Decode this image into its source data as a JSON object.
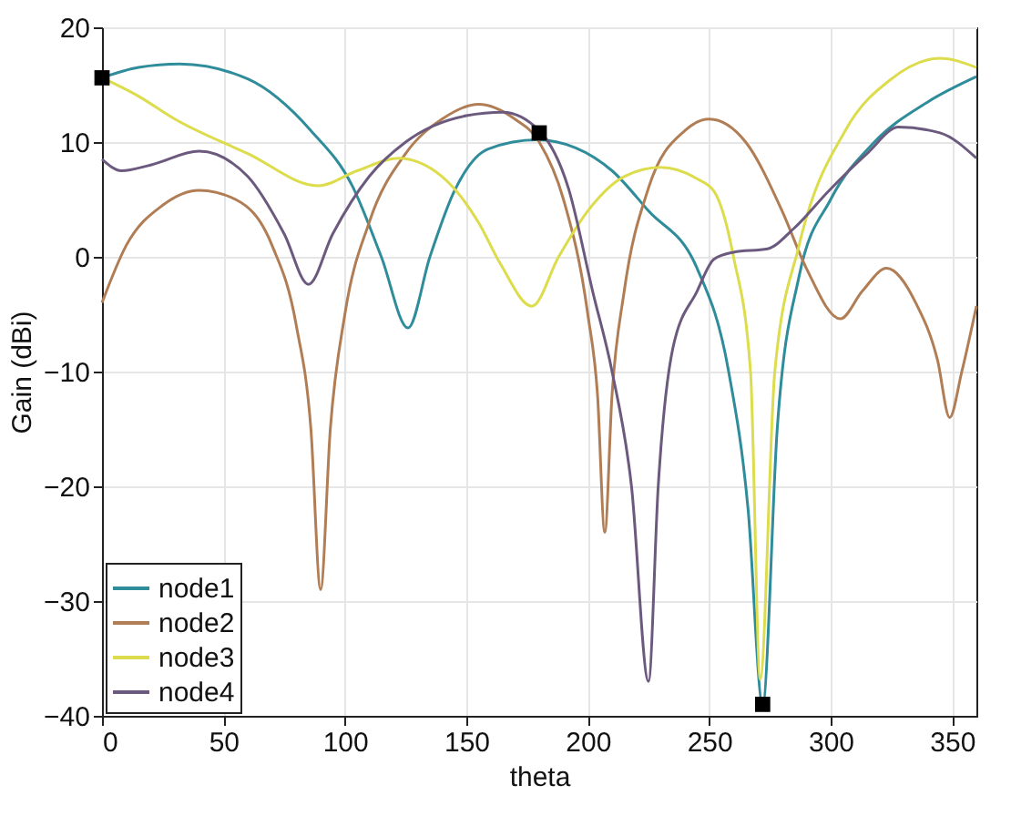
{
  "chart_data": {
    "type": "line",
    "xlabel": "theta",
    "ylabel": "Gain (dBi)",
    "xlim": [
      0,
      360
    ],
    "xticks": [
      0,
      50,
      100,
      150,
      200,
      250,
      300,
      350
    ],
    "ylim": [
      -40,
      20
    ],
    "yticks": [
      -40,
      -30,
      -20,
      -10,
      0,
      10,
      20
    ],
    "grid": true,
    "legend": "bottom left",
    "line_style": "solid",
    "series": [
      {
        "name": "node1",
        "color": "#2f8c9a",
        "x": [
          0,
          15,
          32,
          60,
          86,
          103,
          115,
          126,
          135,
          145,
          159,
          179,
          195,
          210,
          225,
          245,
          258,
          266,
          272,
          278,
          287,
          300,
          318,
          340,
          360
        ],
        "values": [
          15.6,
          16.5,
          16.8,
          15.5,
          11,
          6.2,
          0,
          -6.2,
          0,
          5.7,
          9.4,
          10.2,
          9.5,
          7.5,
          4,
          -1,
          -10,
          -22,
          -39,
          -15,
          -1.7,
          5,
          10,
          13.5,
          15.7
        ]
      },
      {
        "name": "node2",
        "color": "#b07d55",
        "x": [
          0,
          10,
          25,
          40,
          55,
          70,
          80,
          86,
          90,
          94,
          100,
          110,
          125,
          140,
          155,
          170,
          180,
          190,
          200,
          204,
          207,
          210,
          215,
          225,
          240,
          250,
          265,
          280,
          290,
          304,
          313,
          323,
          335,
          344,
          349,
          354,
          360
        ],
        "values": [
          -4,
          1,
          4.5,
          5.8,
          5,
          1,
          -6,
          -15,
          -29,
          -15,
          -5,
          3,
          9,
          12,
          13.3,
          12,
          10,
          5,
          -5,
          -12,
          -24,
          -12,
          -3,
          6,
          11,
          12,
          10,
          4,
          -1,
          -5.4,
          -3,
          -1,
          -4,
          -9,
          -14,
          -10,
          -4.3
        ]
      },
      {
        "name": "node3",
        "color": "#dcdc4c",
        "x": [
          0,
          15,
          30,
          60,
          89,
          105,
          122,
          140,
          155,
          164,
          177,
          188,
          200,
          215,
          230,
          245,
          252,
          260,
          267,
          271,
          277,
          287,
          306,
          325,
          345,
          360
        ],
        "values": [
          15.6,
          14,
          12,
          9,
          6.2,
          7.5,
          8.6,
          7,
          3,
          -0.6,
          -4.3,
          0,
          4,
          7,
          7.8,
          6.8,
          5.7,
          0,
          -10,
          -36.8,
          -10,
          1,
          11,
          15.5,
          17.3,
          16.5
        ]
      },
      {
        "name": "node4",
        "color": "#6c5a7e",
        "x": [
          0,
          8,
          20,
          40,
          60,
          75,
          85,
          95,
          110,
          125,
          150,
          165,
          180,
          192,
          202,
          210,
          218,
          225,
          229,
          235,
          245,
          252,
          260,
          274,
          285,
          299,
          315,
          328,
          345,
          360
        ],
        "values": [
          8.5,
          7.5,
          8,
          9.2,
          7,
          2,
          -2.4,
          2,
          7,
          10,
          12.3,
          12.6,
          11,
          6,
          -3,
          -10,
          -20,
          -37,
          -20,
          -8,
          -3,
          -0.2,
          0.4,
          0.7,
          2.5,
          5.7,
          9,
          11.3,
          10.8,
          8.6
        ]
      },
      {
        "type": "scatter",
        "marker": "square",
        "color": "#000000",
        "x": [
          0,
          180,
          272
        ],
        "values": [
          15.6,
          10.8,
          -39
        ]
      }
    ]
  }
}
